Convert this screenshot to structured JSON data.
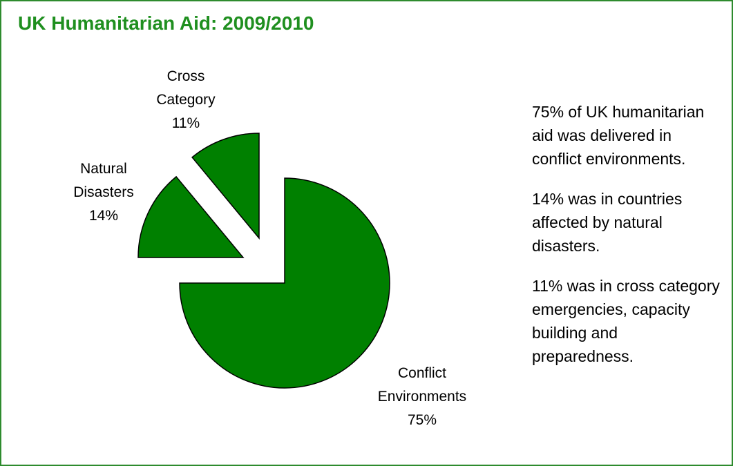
{
  "chart_data": {
    "type": "pie",
    "title": "UK Humanitarian Aid: 2009/2010",
    "slices": [
      {
        "label_lines": [
          "Conflict",
          "Environments"
        ],
        "value": 75,
        "value_label": "75%",
        "color": "#008000"
      },
      {
        "label_lines": [
          "Natural",
          "Disasters"
        ],
        "value": 14,
        "value_label": "14%",
        "color": "#008000"
      },
      {
        "label_lines": [
          "Cross",
          "Category"
        ],
        "value": 11,
        "value_label": "11%",
        "color": "#008000"
      }
    ],
    "stroke_color": "#000000",
    "accent_color": "#1f8f1f"
  },
  "notes": [
    "75% of UK humanitarian aid was delivered in conflict environments.",
    "14% was in countries affected by natural disasters.",
    "11% was in cross category emergencies, capacity building and preparedness."
  ]
}
